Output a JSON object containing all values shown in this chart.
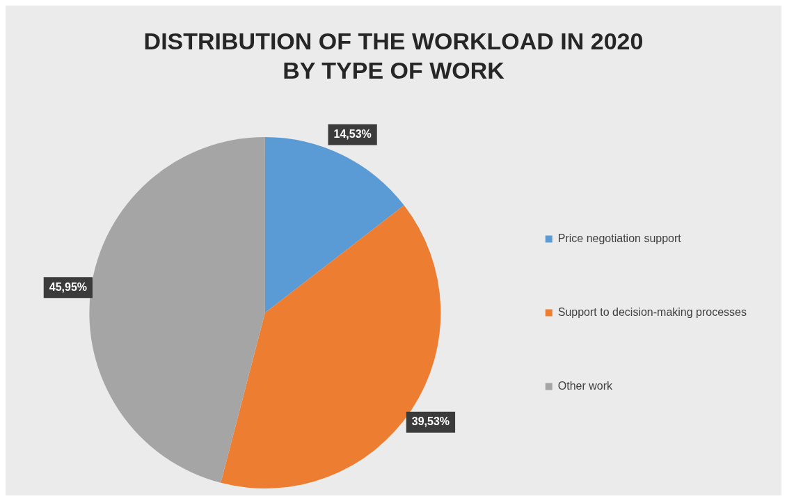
{
  "chart_data": {
    "type": "pie",
    "title": "DISTRIBUTION OF THE WORKLOAD IN 2020 BY TYPE OF WORK",
    "categories": [
      "Price negotiation support",
      "Support to decision-making processes",
      "Other work"
    ],
    "values": [
      14.53,
      39.53,
      45.95
    ],
    "colors": [
      "#5b9bd5",
      "#ed7d31",
      "#a5a5a5"
    ],
    "value_labels": [
      "14,53%",
      "39,53%",
      "45,95%"
    ],
    "legend": "right"
  }
}
